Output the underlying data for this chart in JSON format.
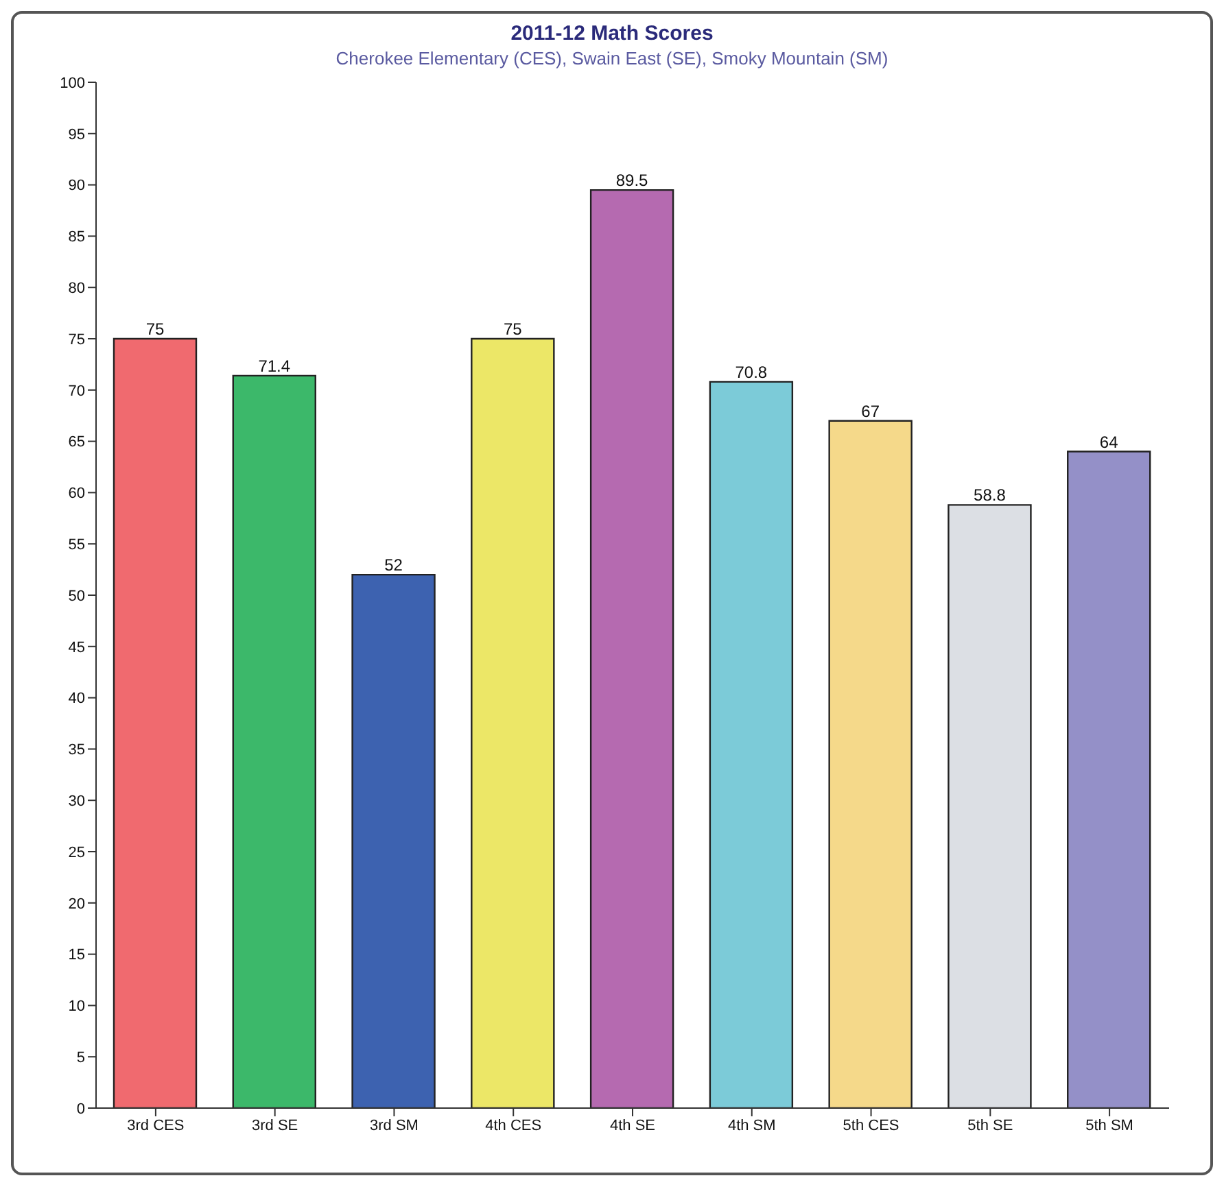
{
  "chart_data": {
    "type": "bar",
    "title": "2011-12 Math Scores",
    "subtitle": "Cherokee Elementary (CES), Swain East (SE), Smoky Mountain (SM)",
    "categories": [
      "3rd CES",
      "3rd SE",
      "3rd SM",
      "4th CES",
      "4th SE",
      "4th SM",
      "5th CES",
      "5th SE",
      "5th SM"
    ],
    "values": [
      75,
      71.4,
      52,
      75,
      89.5,
      70.8,
      67,
      58.8,
      64
    ],
    "colors": [
      "#f06a6f",
      "#3cb86a",
      "#3d62b0",
      "#ece767",
      "#b56ab0",
      "#7ccbd8",
      "#f5d98a",
      "#dcdfe4",
      "#9490c8"
    ],
    "ylim": [
      0,
      100
    ],
    "yticks": [
      0,
      5,
      10,
      15,
      20,
      25,
      30,
      35,
      40,
      45,
      50,
      55,
      60,
      65,
      70,
      75,
      80,
      85,
      90,
      95,
      100
    ],
    "data_labels": true
  }
}
